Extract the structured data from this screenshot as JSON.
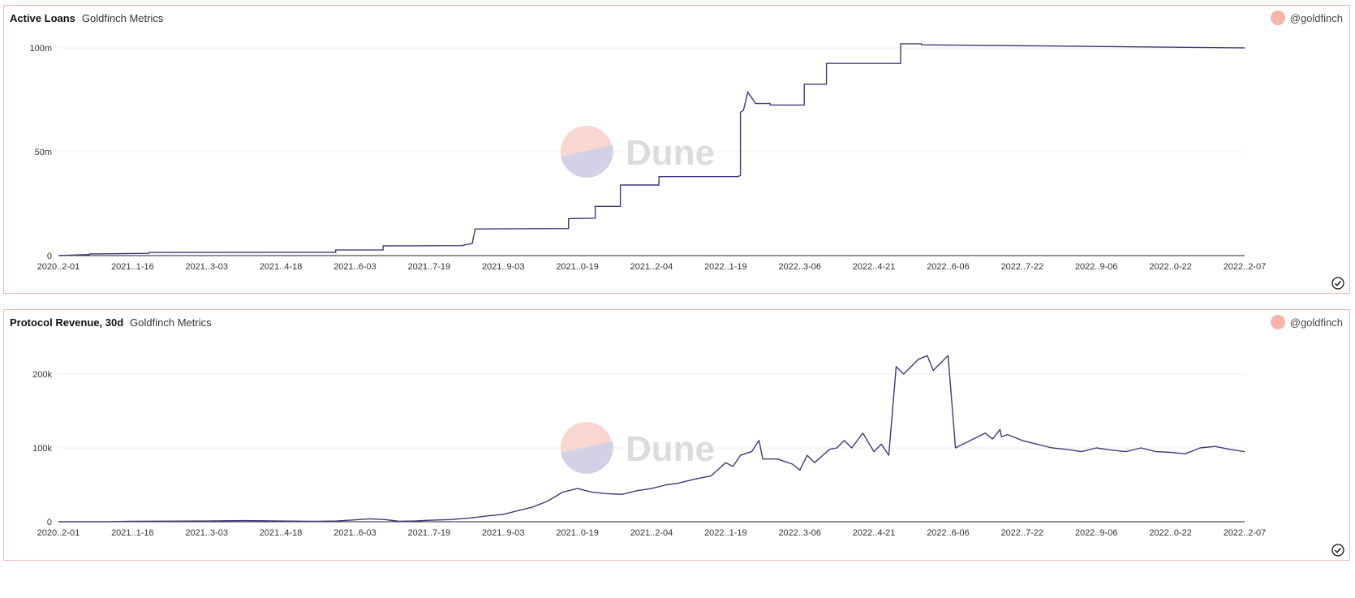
{
  "colors": {
    "line": "#3b3b7d",
    "border": "#f4b7ae",
    "grid": "#eeeeee",
    "avatar": "#f7b4a8"
  },
  "watermark": {
    "text": "Dune"
  },
  "charts": [
    {
      "title": "Active Loans",
      "subtitle": "Goldfinch Metrics",
      "author": "@goldfinch",
      "check_icon": "check-circle-icon"
    },
    {
      "title": "Protocol Revenue, 30d",
      "subtitle": "Goldfinch Metrics",
      "author": "@goldfinch",
      "check_icon": "check-circle-icon"
    }
  ],
  "chart_data": [
    {
      "type": "line",
      "title": "Active Loans",
      "xlabels": [
        "2020..2-01",
        "2021..1-16",
        "2021..3-03",
        "2021..4-18",
        "2021..6-03",
        "2021..7-19",
        "2021..9-03",
        "2021..0-19",
        "2021..2-04",
        "2022..1-19",
        "2022..3-06",
        "2022..4-21",
        "2022..6-06",
        "2022..7-22",
        "2022..9-06",
        "2022..0-22",
        "2022..2-07"
      ],
      "yticks": [
        0,
        50000000,
        100000000
      ],
      "ytick_labels": [
        "0",
        "50m",
        "100m"
      ],
      "ylim": [
        0,
        100000000
      ],
      "series": [
        {
          "x": [
            0,
            0.42,
            0.42,
            1.22,
            1.22,
            3.74,
            3.74,
            4.38,
            4.38,
            5.46,
            5.46,
            5.58,
            5.62,
            5.62,
            6.88,
            6.88,
            7.24,
            7.24,
            7.58,
            7.58,
            8.1,
            8.1,
            9.08,
            9.16,
            9.2,
            9.2,
            9.24,
            9.3,
            9.3,
            9.4,
            9.4,
            9.6,
            9.6,
            10.06,
            10.06,
            10.36,
            10.36,
            11.36,
            11.36,
            11.64,
            11.64,
            16.0
          ],
          "y": [
            0,
            500000,
            800000,
            1100000,
            1500000,
            1600000,
            2700000,
            2700000,
            4700000,
            4800000,
            5000000,
            5800000,
            12500000,
            12800000,
            13000000,
            17800000,
            18000000,
            23700000,
            23700000,
            34000000,
            34000000,
            38000000,
            38000000,
            38000000,
            38500000,
            69000000,
            70000000,
            79000000,
            78500000,
            73500000,
            73200000,
            73200000,
            72500000,
            72500000,
            82500000,
            82500000,
            92500000,
            92500000,
            102000000,
            102000000,
            101500000,
            100000000
          ]
        }
      ]
    },
    {
      "type": "line",
      "title": "Protocol Revenue, 30d",
      "xlabels": [
        "2020..2-01",
        "2021..1-16",
        "2021..3-03",
        "2021..4-18",
        "2021..6-03",
        "2021..7-19",
        "2021..9-03",
        "2021..0-19",
        "2021..2-04",
        "2022..1-19",
        "2022..3-06",
        "2022..4-21",
        "2022..6-06",
        "2022..7-22",
        "2022..9-06",
        "2022..0-22",
        "2022..2-07"
      ],
      "yticks": [
        0,
        100000,
        200000
      ],
      "ytick_labels": [
        "0",
        "100k",
        "200k"
      ],
      "ylim": [
        0,
        200000
      ],
      "series": [
        {
          "x": [
            0,
            0.6,
            1.0,
            2.0,
            2.5,
            3.0,
            3.5,
            3.75,
            4.0,
            4.2,
            4.4,
            4.6,
            4.8,
            5.0,
            5.3,
            5.55,
            5.8,
            6.0,
            6.2,
            6.4,
            6.6,
            6.8,
            7.0,
            7.2,
            7.4,
            7.6,
            7.8,
            8.0,
            8.2,
            8.35,
            8.6,
            8.8,
            9.0,
            9.1,
            9.2,
            9.35,
            9.45,
            9.5,
            9.7,
            9.9,
            10.0,
            10.1,
            10.2,
            10.4,
            10.5,
            10.6,
            10.7,
            10.85,
            11.0,
            11.1,
            11.2,
            11.3,
            11.4,
            11.6,
            11.72,
            11.8,
            12.0,
            12.1,
            12.3,
            12.5,
            12.6,
            12.7,
            12.72,
            12.8,
            13.0,
            13.2,
            13.4,
            13.6,
            13.8,
            14.0,
            14.2,
            14.4,
            14.6,
            14.8,
            15.0,
            15.2,
            15.4,
            15.6,
            15.8,
            16.0
          ],
          "y": [
            0,
            0,
            500,
            1000,
            1500,
            1000,
            500,
            1000,
            2500,
            4000,
            3000,
            500,
            1000,
            2000,
            3000,
            5000,
            8000,
            10000,
            15000,
            20000,
            28000,
            40000,
            45000,
            40000,
            38000,
            37000,
            42000,
            45000,
            50000,
            52000,
            58000,
            62000,
            80000,
            75000,
            90000,
            95000,
            110000,
            85000,
            85000,
            78000,
            70000,
            90000,
            80000,
            98000,
            100000,
            110000,
            100000,
            120000,
            95000,
            105000,
            90000,
            210000,
            200000,
            220000,
            225000,
            205000,
            225000,
            100000,
            110000,
            120000,
            112000,
            125000,
            115000,
            118000,
            110000,
            105000,
            100000,
            98000,
            95000,
            100000,
            97000,
            95000,
            100000,
            95000,
            94000,
            92000,
            100000,
            102000,
            98000,
            95000
          ]
        }
      ]
    }
  ]
}
